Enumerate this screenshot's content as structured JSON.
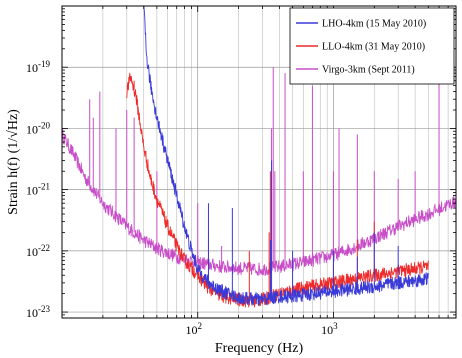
{
  "chart_data": {
    "type": "line",
    "title": "",
    "xlabel": "Frequency (Hz)",
    "ylabel": "Strain h(f) (1/√Hz)",
    "xscale": "log",
    "yscale": "log",
    "xlim": [
      10,
      8000
    ],
    "ylim": [
      8e-24,
      1e-18
    ],
    "grid": true,
    "legend_position": "top-right",
    "x_ticks": [
      {
        "value": 100,
        "base": "10",
        "exp": "2"
      },
      {
        "value": 1000,
        "base": "10",
        "exp": "3"
      }
    ],
    "y_ticks": [
      {
        "value": 1e-19,
        "base": "10",
        "exp": "-19"
      },
      {
        "value": 1e-20,
        "base": "10",
        "exp": "-20"
      },
      {
        "value": 1e-21,
        "base": "10",
        "exp": "-21"
      },
      {
        "value": 1e-22,
        "base": "10",
        "exp": "-22"
      },
      {
        "value": 1e-23,
        "base": "10",
        "exp": "-23"
      }
    ],
    "series": [
      {
        "name": "LHO-4km (15 May 2010)",
        "color": "#3a3ad8",
        "points": [
          [
            40,
            1e-18
          ],
          [
            42,
            1.5e-19
          ],
          [
            45,
            5e-20
          ],
          [
            50,
            1.5e-20
          ],
          [
            60,
            3e-21
          ],
          [
            70,
            8e-22
          ],
          [
            80,
            2.5e-22
          ],
          [
            90,
            1e-22
          ],
          [
            100,
            5e-23
          ],
          [
            120,
            3e-23
          ],
          [
            150,
            2.2e-23
          ],
          [
            200,
            1.7e-23
          ],
          [
            300,
            1.6e-23
          ],
          [
            400,
            1.8e-23
          ],
          [
            500,
            1.8e-23
          ],
          [
            700,
            2e-23
          ],
          [
            1000,
            2.2e-23
          ],
          [
            2000,
            2.6e-23
          ],
          [
            3000,
            3e-23
          ],
          [
            5000,
            3.5e-23
          ]
        ],
        "lines": [
          [
            60,
            3e-21
          ],
          [
            120,
            6e-22
          ],
          [
            180,
            5e-22
          ],
          [
            344,
            1.5e-22
          ],
          [
            350,
            3e-21
          ],
          [
            500,
            1e-22
          ],
          [
            1000,
            1e-22
          ],
          [
            1500,
            8e-23
          ],
          [
            2000,
            2e-22
          ],
          [
            3000,
            1.2e-22
          ]
        ]
      },
      {
        "name": "LLO-4km (31 May 2010)",
        "color": "#ee2a2a",
        "points": [
          [
            30,
            4e-20
          ],
          [
            32,
            7e-20
          ],
          [
            35,
            3.5e-20
          ],
          [
            40,
            5e-21
          ],
          [
            45,
            1.5e-21
          ],
          [
            50,
            7e-22
          ],
          [
            60,
            2.5e-22
          ],
          [
            70,
            1.2e-22
          ],
          [
            80,
            7e-23
          ],
          [
            100,
            4e-23
          ],
          [
            120,
            2.5e-23
          ],
          [
            150,
            1.8e-23
          ],
          [
            200,
            1.6e-23
          ],
          [
            250,
            1.5e-23
          ],
          [
            300,
            1.6e-23
          ],
          [
            400,
            2e-23
          ],
          [
            600,
            2.5e-23
          ],
          [
            1000,
            3e-23
          ],
          [
            2000,
            4e-23
          ],
          [
            3000,
            4.6e-23
          ],
          [
            5000,
            5.5e-23
          ]
        ],
        "lines": [
          [
            34,
            6e-20
          ],
          [
            120,
            2e-22
          ],
          [
            240,
            1e-22
          ],
          [
            336,
            2e-22
          ],
          [
            343,
            2e-21
          ],
          [
            1000,
            1e-22
          ],
          [
            1500,
            1.5e-22
          ],
          [
            2000,
            3e-22
          ]
        ]
      },
      {
        "name": "Virgo-3km (Sept 2011)",
        "color": "#c84ec8",
        "points": [
          [
            10,
            8e-21
          ],
          [
            12,
            4e-21
          ],
          [
            15,
            1.5e-21
          ],
          [
            20,
            6e-22
          ],
          [
            30,
            2.5e-22
          ],
          [
            40,
            1.5e-22
          ],
          [
            50,
            1.1e-22
          ],
          [
            70,
            8e-23
          ],
          [
            100,
            6.5e-23
          ],
          [
            150,
            5.5e-23
          ],
          [
            200,
            5.2e-23
          ],
          [
            300,
            5e-23
          ],
          [
            400,
            5.5e-23
          ],
          [
            600,
            6.5e-23
          ],
          [
            1000,
            8.5e-23
          ],
          [
            1500,
            1.2e-22
          ],
          [
            2000,
            1.6e-22
          ],
          [
            3000,
            2.5e-22
          ],
          [
            5000,
            4e-22
          ],
          [
            8000,
            6.5e-22
          ]
        ],
        "lines": [
          [
            16,
            3e-20
          ],
          [
            17,
            1.5e-20
          ],
          [
            19,
            4e-20
          ],
          [
            25,
            1e-20
          ],
          [
            30,
            2e-20
          ],
          [
            34,
            1.5e-20
          ],
          [
            50,
            2e-21
          ],
          [
            100,
            6e-22
          ],
          [
            150,
            1.2e-22
          ],
          [
            350,
            1e-20
          ],
          [
            360,
            1e-19
          ],
          [
            370,
            2e-21
          ],
          [
            440,
            8e-20
          ],
          [
            600,
            2e-21
          ],
          [
            700,
            5e-20
          ],
          [
            1000,
            2e-21
          ],
          [
            1100,
            1e-20
          ],
          [
            1500,
            8e-21
          ],
          [
            2000,
            2e-21
          ],
          [
            3000,
            1.5e-21
          ],
          [
            4000,
            2e-21
          ],
          [
            6000,
            2e-19
          ]
        ]
      }
    ]
  }
}
